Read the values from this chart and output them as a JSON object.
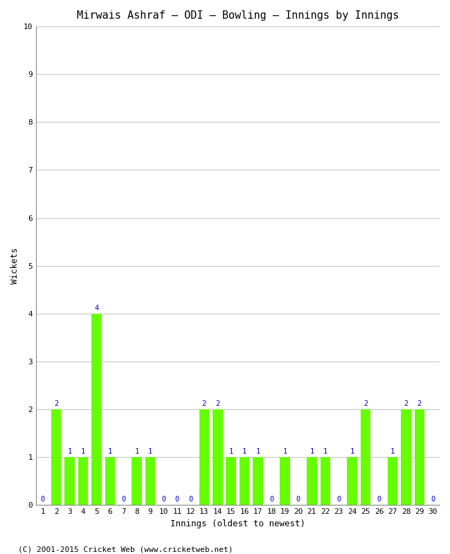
{
  "title": "Mirwais Ashraf – ODI – Bowling – Innings by Innings",
  "xlabel": "Innings (oldest to newest)",
  "ylabel": "Wickets",
  "background_color": "#ffffff",
  "bar_color": "#66ff00",
  "label_color": "#0000cc",
  "grid_color": "#c8c8c8",
  "ylim": [
    0,
    10
  ],
  "yticks": [
    0,
    1,
    2,
    3,
    4,
    5,
    6,
    7,
    8,
    9,
    10
  ],
  "innings": [
    1,
    2,
    3,
    4,
    5,
    6,
    7,
    8,
    9,
    10,
    11,
    12,
    13,
    14,
    15,
    16,
    17,
    18,
    19,
    20,
    21,
    22,
    23,
    24,
    25,
    26,
    27,
    28,
    29,
    30
  ],
  "wickets": [
    0,
    2,
    1,
    1,
    4,
    1,
    0,
    1,
    1,
    0,
    0,
    0,
    2,
    2,
    1,
    1,
    1,
    0,
    1,
    0,
    1,
    1,
    0,
    1,
    2,
    0,
    1,
    2,
    2,
    0
  ],
  "footer": "(C) 2001-2015 Cricket Web (www.cricketweb.net)",
  "title_fontsize": 11,
  "axis_label_fontsize": 9,
  "tick_fontsize": 8,
  "bar_label_fontsize": 7.5,
  "footer_fontsize": 8
}
